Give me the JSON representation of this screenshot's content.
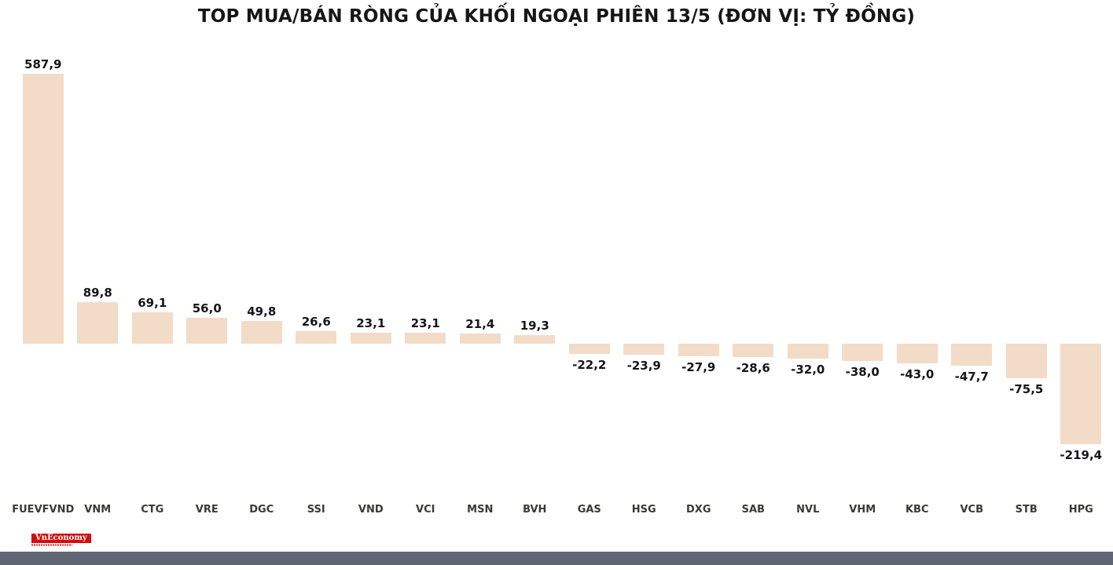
{
  "chart_data": {
    "type": "bar",
    "title": "TOP MUA/BÁN RÒNG CỦA KHỐI NGOẠI PHIÊN 13/5 (ĐƠN VỊ: TỶ ĐỒNG)",
    "categories": [
      "FUEVFVND",
      "VNM",
      "CTG",
      "VRE",
      "DGC",
      "SSI",
      "VND",
      "VCI",
      "MSN",
      "BVH",
      "GAS",
      "HSG",
      "DXG",
      "SAB",
      "NVL",
      "VHM",
      "KBC",
      "VCB",
      "STB",
      "HPG"
    ],
    "values": [
      587.9,
      89.8,
      69.1,
      56.0,
      49.8,
      26.6,
      23.1,
      23.1,
      21.4,
      19.3,
      -22.2,
      -23.9,
      -27.9,
      -28.6,
      -32.0,
      -38.0,
      -43.0,
      -47.7,
      -75.5,
      -219.4
    ],
    "labels": [
      "587,9",
      "89,8",
      "69,1",
      "56,0",
      "49,8",
      "26,6",
      "23,1",
      "23,1",
      "21,4",
      "19,3",
      "-22,2",
      "-23,9",
      "-27,9",
      "-28,6",
      "-32,0",
      "-38,0",
      "-43,0",
      "-47,7",
      "-75,5",
      "-219,4"
    ],
    "bar_color": "#f2dcc8",
    "label_color": "#15151a",
    "xlabel": "",
    "ylabel": "",
    "ylim": [
      -240,
      620
    ],
    "grid": false,
    "legend": "none"
  },
  "footer": {
    "logo_text": "VnEconomy",
    "logo_color": "#d40c0c",
    "strip_color": "#5f6672"
  }
}
